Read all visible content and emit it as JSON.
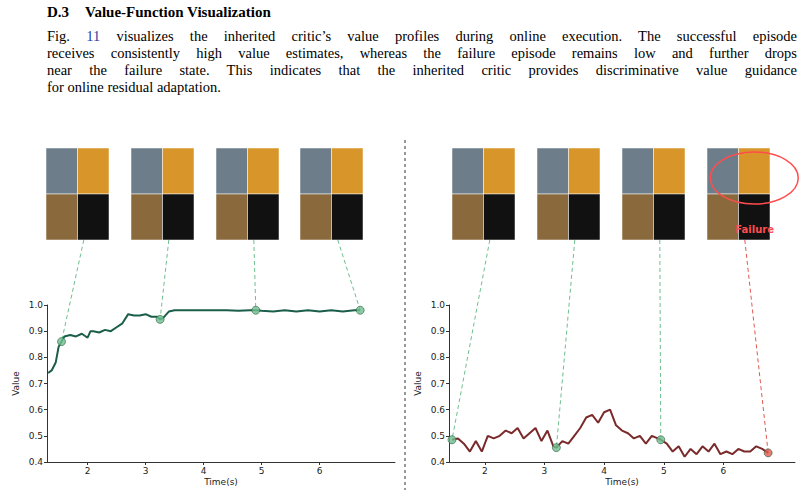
{
  "heading": {
    "number": "D.3",
    "title": "Value-Function Visualization"
  },
  "paragraph": {
    "ref_prefix": "Fig. ",
    "ref": "11",
    "lines": [
      " visualizes the inherited critic’s value profiles during online execution. The successful episode",
      "receives consistently high value estimates, whereas the failure episode remains low and further drops",
      "near the failure state. This indicates that the inherited critic provides discriminative value guidance",
      "for online residual adaptation."
    ]
  },
  "chart_data": [
    {
      "type": "line",
      "xlabel": "Time(s)",
      "ylabel": "Value",
      "xlim": [
        1.3,
        7.3
      ],
      "xticks": [
        2,
        3,
        4,
        5,
        6
      ],
      "ylim": [
        0.4,
        1.0
      ],
      "yticks": [
        0.4,
        0.5,
        0.6,
        0.7,
        0.8,
        0.9,
        {
          "value": 1.0,
          "label": "1.0"
        }
      ],
      "grid": false,
      "color": "#1b5e4a",
      "x": [
        1.32,
        1.38,
        1.45,
        1.5,
        1.55,
        1.6,
        1.7,
        1.8,
        1.9,
        2.0,
        2.05,
        2.1,
        2.2,
        2.3,
        2.4,
        2.5,
        2.6,
        2.7,
        2.8,
        2.9,
        3.0,
        3.1,
        3.2,
        3.25,
        3.3,
        3.4,
        3.5,
        3.6,
        3.8,
        4.0,
        4.2,
        4.4,
        4.6,
        4.8,
        4.9,
        5.0,
        5.2,
        5.4,
        5.6,
        5.8,
        6.0,
        6.2,
        6.4,
        6.6,
        6.7
      ],
      "values": [
        0.74,
        0.75,
        0.78,
        0.84,
        0.86,
        0.88,
        0.885,
        0.88,
        0.89,
        0.875,
        0.9,
        0.9,
        0.895,
        0.905,
        0.9,
        0.915,
        0.93,
        0.965,
        0.96,
        0.96,
        0.965,
        0.955,
        0.955,
        0.945,
        0.95,
        0.975,
        0.98,
        0.98,
        0.98,
        0.98,
        0.98,
        0.98,
        0.978,
        0.98,
        0.98,
        0.978,
        0.975,
        0.98,
        0.975,
        0.98,
        0.975,
        0.98,
        0.975,
        0.98,
        0.98
      ],
      "highlights": {
        "x": [
          1.55,
          3.25,
          4.9,
          6.7
        ],
        "values": [
          0.86,
          0.945,
          0.98,
          0.98
        ],
        "colors": [
          "#6fbf8f",
          "#6fbf8f",
          "#6fbf8f",
          "#6fbf8f"
        ]
      }
    },
    {
      "type": "line",
      "xlabel": "Time(s)",
      "ylabel": "Value",
      "xlim": [
        1.4,
        7.2
      ],
      "xticks": [
        2,
        3,
        4,
        5,
        6
      ],
      "ylim": [
        0.4,
        1.0
      ],
      "yticks": [
        0.4,
        0.5,
        0.6,
        0.7,
        0.8,
        0.9,
        {
          "value": 1.0,
          "label": "1.0"
        }
      ],
      "grid": false,
      "color": "#7a2a2a",
      "x": [
        1.45,
        1.55,
        1.65,
        1.75,
        1.85,
        1.95,
        2.05,
        2.15,
        2.25,
        2.35,
        2.45,
        2.55,
        2.65,
        2.75,
        2.85,
        2.95,
        3.05,
        3.15,
        3.2,
        3.3,
        3.4,
        3.5,
        3.6,
        3.7,
        3.8,
        3.9,
        4.0,
        4.1,
        4.2,
        4.3,
        4.4,
        4.5,
        4.6,
        4.7,
        4.8,
        4.9,
        4.95,
        5.05,
        5.15,
        5.25,
        5.35,
        5.45,
        5.55,
        5.65,
        5.75,
        5.85,
        5.95,
        6.05,
        6.15,
        6.25,
        6.35,
        6.45,
        6.55,
        6.65,
        6.75
      ],
      "values": [
        0.485,
        0.49,
        0.47,
        0.44,
        0.48,
        0.44,
        0.5,
        0.49,
        0.5,
        0.52,
        0.51,
        0.53,
        0.49,
        0.51,
        0.53,
        0.48,
        0.52,
        0.46,
        0.455,
        0.48,
        0.47,
        0.5,
        0.53,
        0.57,
        0.58,
        0.55,
        0.59,
        0.6,
        0.54,
        0.52,
        0.51,
        0.49,
        0.5,
        0.47,
        0.5,
        0.49,
        0.485,
        0.47,
        0.44,
        0.46,
        0.42,
        0.45,
        0.43,
        0.46,
        0.44,
        0.47,
        0.43,
        0.44,
        0.43,
        0.45,
        0.44,
        0.44,
        0.46,
        0.45,
        0.435
      ],
      "highlights": {
        "x": [
          1.45,
          3.2,
          4.95,
          6.75
        ],
        "values": [
          0.485,
          0.455,
          0.485,
          0.435
        ],
        "colors": [
          "#6fbf8f",
          "#6fbf8f",
          "#6fbf8f",
          "#e05a4f"
        ]
      },
      "annotations": [
        {
          "text": "Failure",
          "color": "#ff4d4d"
        }
      ]
    }
  ]
}
